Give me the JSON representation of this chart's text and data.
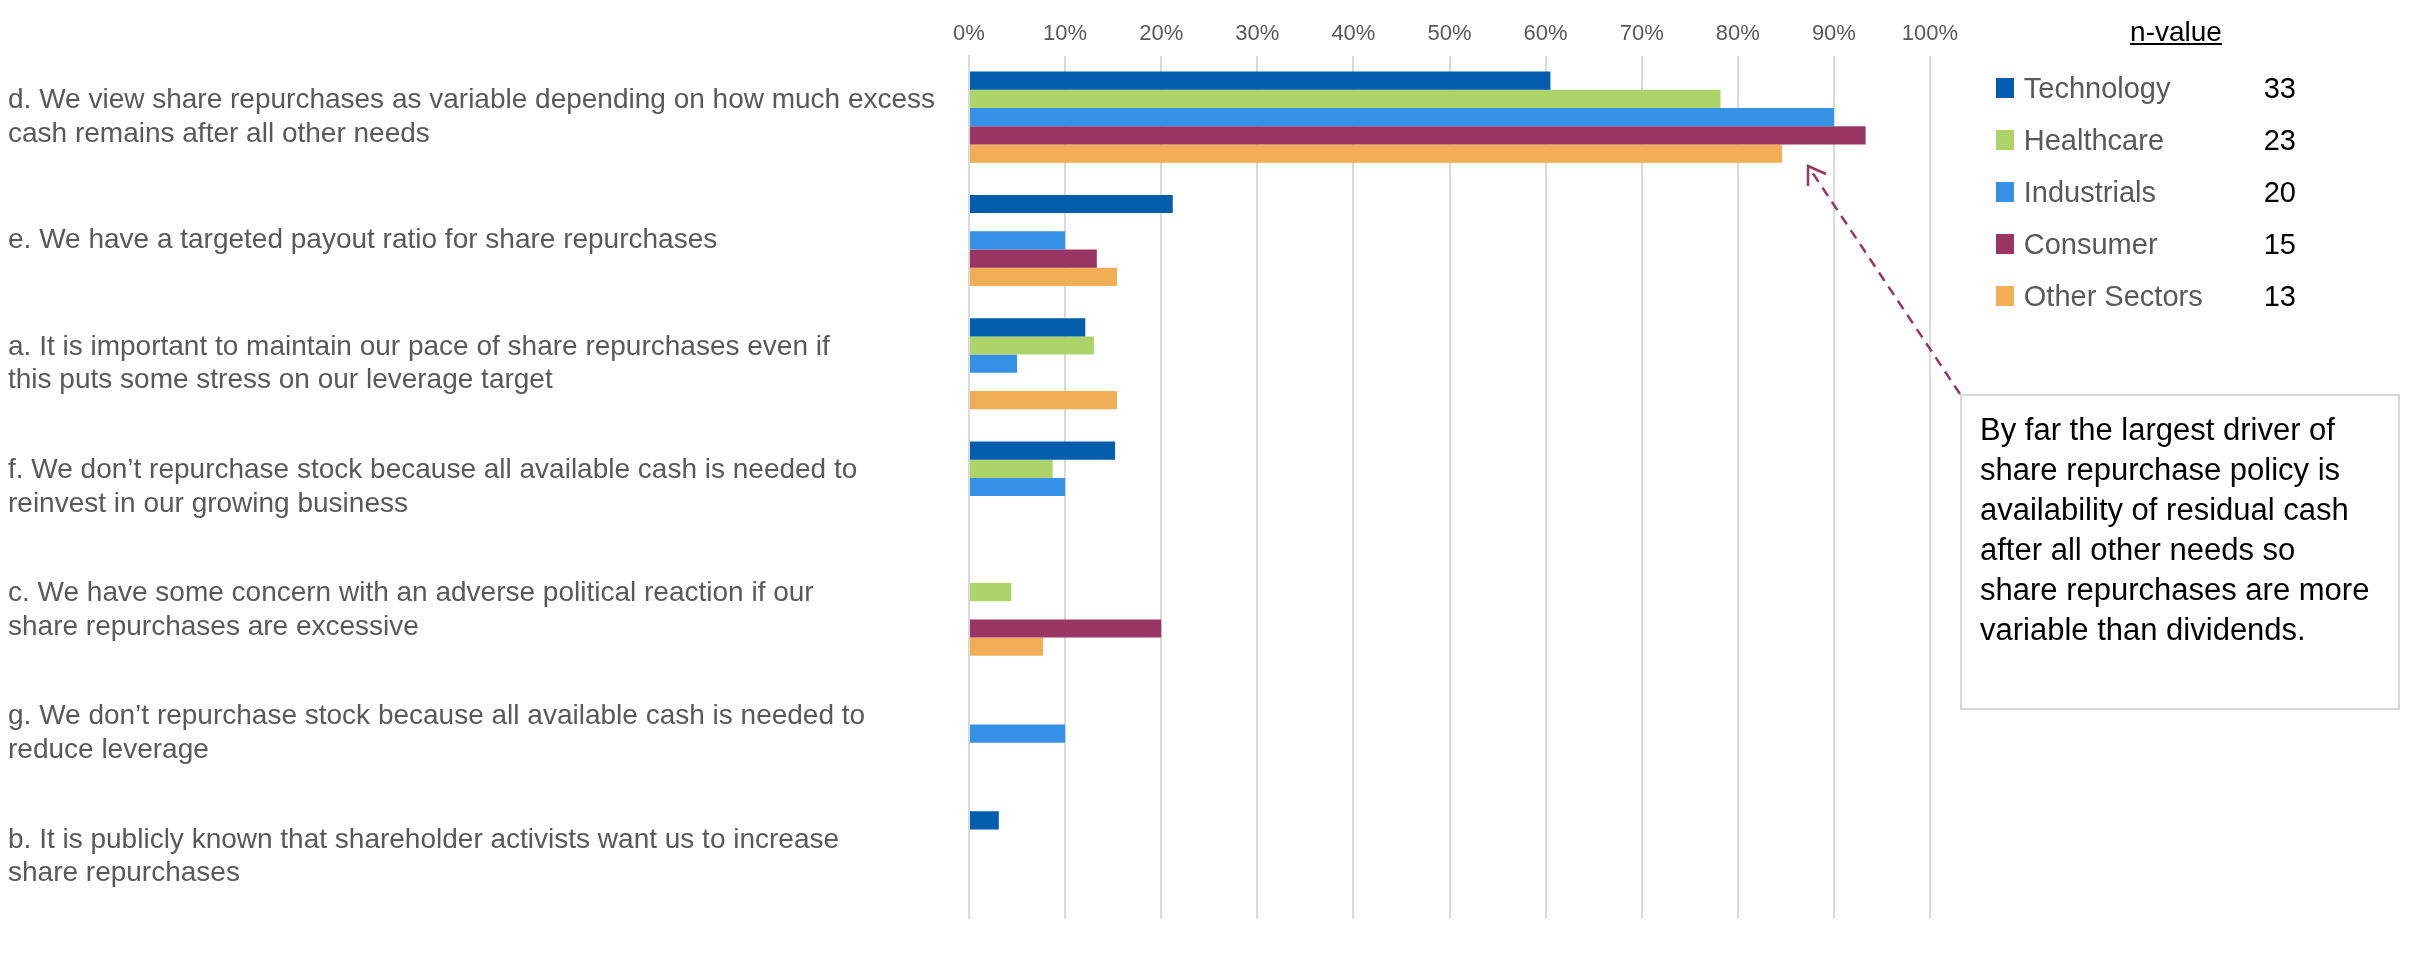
{
  "chart_data": {
    "type": "bar",
    "orientation": "horizontal",
    "categories": [
      "d. We view share repurchases as variable depending on how much excess cash remains after all other needs",
      "e. We have a targeted payout ratio for share repurchases",
      "a. It is important to maintain our pace of share repurchases even if this puts some stress on our leverage target",
      "f. We don’t repurchase stock because all available cash is needed to reinvest in our growing business",
      "c. We have some concern with an adverse political reaction if our share repurchases are excessive",
      "g. We don’t repurchase stock because all available cash is needed to reduce leverage",
      "b. It is publicly known that shareholder activists want us to increase share repurchases"
    ],
    "series": [
      {
        "name": "Technology",
        "color": "#005eac",
        "values": [
          60.5,
          21.2,
          12.1,
          15.2,
          0,
          0,
          3.1
        ]
      },
      {
        "name": "Healthcare",
        "color": "#acd469",
        "values": [
          78.2,
          0,
          13,
          8.7,
          4.4,
          0,
          0
        ]
      },
      {
        "name": "Industrials",
        "color": "#3590e6",
        "values": [
          90,
          10,
          5,
          10,
          0,
          10,
          0
        ]
      },
      {
        "name": "Consumer",
        "color": "#983563",
        "values": [
          93.3,
          13.3,
          0,
          0,
          20,
          0,
          0
        ]
      },
      {
        "name": "Other Sectors",
        "color": "#f2ae56",
        "values": [
          84.6,
          15.4,
          15.4,
          0,
          7.7,
          0,
          0
        ]
      }
    ],
    "xlim": [
      0,
      100
    ],
    "xticks": [
      {
        "value": 0,
        "label": "0%"
      },
      {
        "value": 10,
        "label": "10%"
      },
      {
        "value": 20,
        "label": "20%"
      },
      {
        "value": 30,
        "label": "30%"
      },
      {
        "value": 40,
        "label": "40%"
      },
      {
        "value": 50,
        "label": "50%"
      },
      {
        "value": 60,
        "label": "60%"
      },
      {
        "value": 70,
        "label": "70%"
      },
      {
        "value": 80,
        "label": "80%"
      },
      {
        "value": 90,
        "label": "90%"
      },
      {
        "value": 100,
        "label": "100%"
      }
    ],
    "grid": "x",
    "legend": "top right",
    "legend_title": "n-value",
    "annotations": [
      "By far the largest driver of share repurchase policy is availability of residual cash after all other needs so share repurchases are more variable than dividends.",
      "33",
      "23",
      "20",
      "15",
      "13"
    ]
  }
}
